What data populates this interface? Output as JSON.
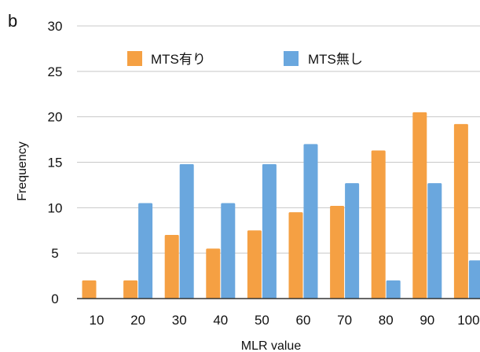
{
  "panel_label": "b",
  "chart_data": {
    "type": "bar",
    "categories": [
      "10",
      "20",
      "30",
      "40",
      "50",
      "60",
      "70",
      "80",
      "90",
      "100"
    ],
    "series": [
      {
        "name": "MTS有り",
        "color": "#f5a043",
        "values": [
          2,
          2,
          7,
          5.5,
          7.5,
          9.5,
          10.2,
          16.3,
          20.5,
          19.2
        ]
      },
      {
        "name": "MTS無し",
        "color": "#6aa7de",
        "values": [
          0,
          10.5,
          14.8,
          10.5,
          14.8,
          17,
          12.7,
          2,
          12.7,
          4.2
        ]
      }
    ],
    "xlabel": "MLR value",
    "ylabel": "Frequency",
    "ylim": [
      0,
      30
    ],
    "yticks": [
      0,
      5,
      10,
      15,
      20,
      25,
      30
    ],
    "grid": true,
    "legend_position": "top"
  }
}
